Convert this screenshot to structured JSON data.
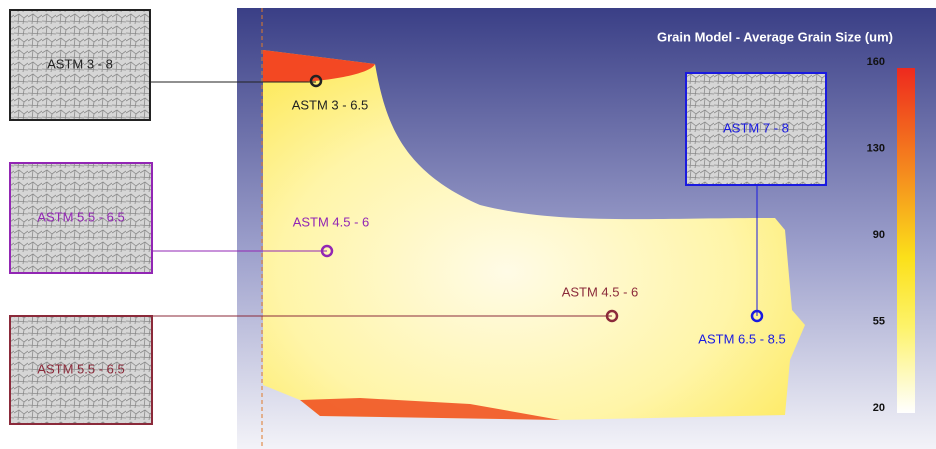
{
  "title": "Grain Model - Average Grain Size (um)",
  "colorbar": {
    "ticks": [
      "160",
      "130",
      "90",
      "55",
      "20"
    ]
  },
  "micrographs": [
    {
      "label": "ASTM 3 - 8"
    },
    {
      "label": "ASTM 5.5 - 6.5"
    },
    {
      "label": "ASTM 5.5 - 6.5"
    },
    {
      "label": "ASTM 7 - 8"
    }
  ],
  "points": [
    {
      "label": "ASTM 3 - 6.5"
    },
    {
      "label": "ASTM 4.5 - 6"
    },
    {
      "label": "ASTM 4.5 - 6"
    },
    {
      "label": "ASTM 6.5 - 8.5"
    }
  ]
}
